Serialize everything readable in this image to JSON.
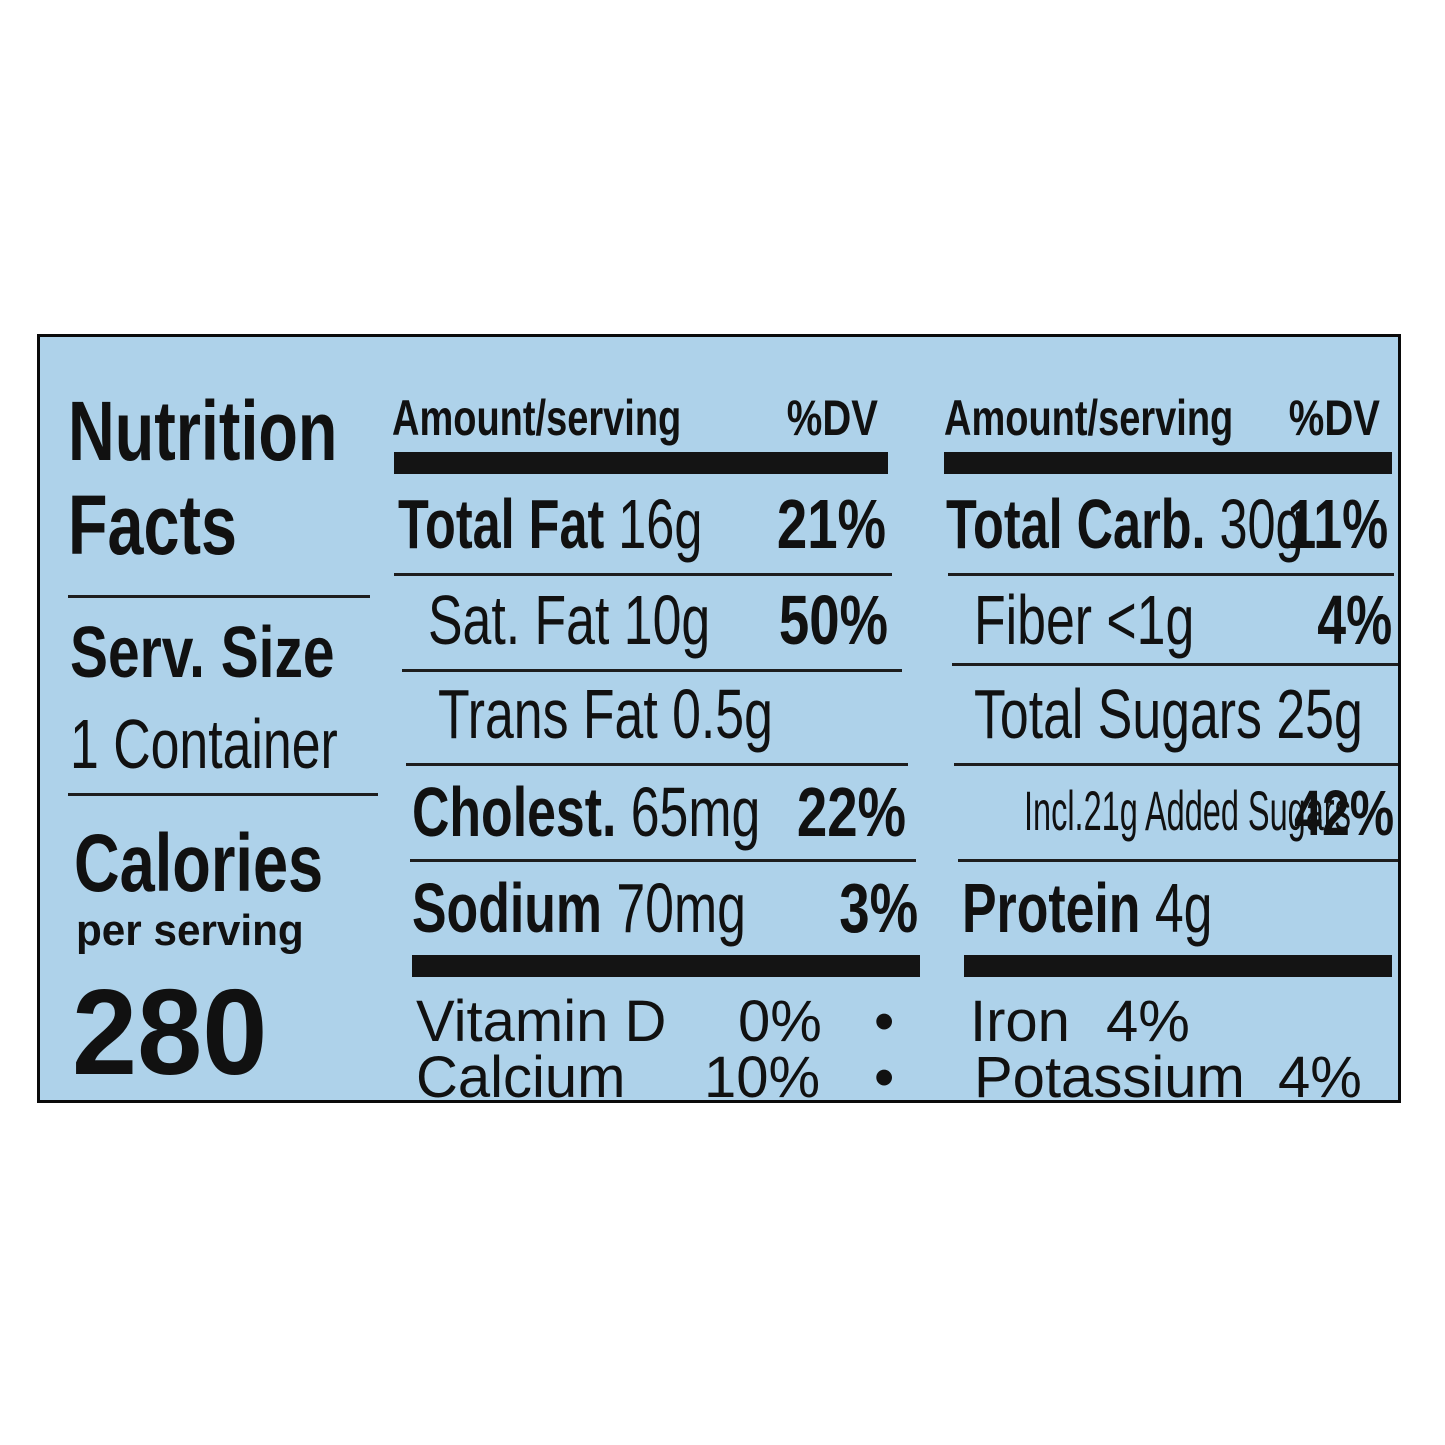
{
  "colors": {
    "label_bg": "#aed2ea",
    "ink": "#111111"
  },
  "left_panel": {
    "title_line1": "Nutrition",
    "title_line2": "Facts",
    "serv_size_label": "Serv. Size",
    "serv_size_value": "1 Container",
    "calories_label": "Calories",
    "per_serving": "per serving",
    "calories_value": "280"
  },
  "middle": {
    "header_amount": "Amount/serving",
    "header_dv": "%DV",
    "rows": [
      {
        "name": "Total Fat",
        "amount": "16g",
        "dv": "21%"
      },
      {
        "name": "Sat. Fat 10g",
        "dv": "50%"
      },
      {
        "name": "Trans Fat 0.5g"
      },
      {
        "name": "Cholest.",
        "amount": "65mg",
        "dv": "22%"
      },
      {
        "name": "Sodium",
        "amount": "70mg",
        "dv": "3%"
      }
    ]
  },
  "right": {
    "header_amount": "Amount/serving",
    "header_dv": "%DV",
    "rows": [
      {
        "name": "Total Carb.",
        "amount": "30g",
        "dv": "11%"
      },
      {
        "name": "Fiber <1g",
        "dv": "4%"
      },
      {
        "name": "Total Sugars 25g"
      },
      {
        "name": "Incl.21g Added Sugars",
        "dv": "42%"
      },
      {
        "name": "Protein",
        "amount": "4g"
      }
    ]
  },
  "vitamins": {
    "vitamin_d_label": "Vitamin D",
    "vitamin_d_value": "0%",
    "calcium_label": "Calcium",
    "calcium_value": "10%",
    "iron_label": "Iron",
    "iron_value": "4%",
    "potassium_label": "Potassium",
    "potassium_value": "4%",
    "bullet": "•"
  }
}
